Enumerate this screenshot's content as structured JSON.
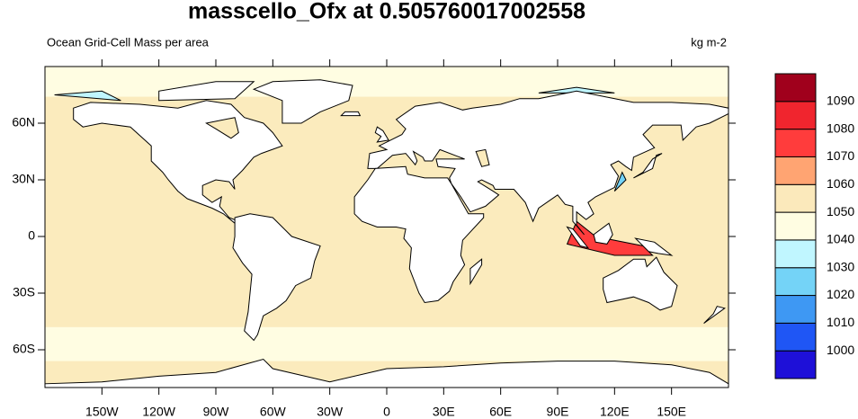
{
  "chart_data": {
    "type": "map",
    "title": "masscello_Ofx at 0.505760017002558",
    "subtitle_left": "Ocean Grid-Cell Mass per area",
    "subtitle_right": "kg m-2",
    "xlim": [
      -180,
      180
    ],
    "ylim": [
      -80,
      90
    ],
    "xticks": [
      {
        "value": -150,
        "label": "150W"
      },
      {
        "value": -120,
        "label": "120W"
      },
      {
        "value": -90,
        "label": "90W"
      },
      {
        "value": -60,
        "label": "60W"
      },
      {
        "value": -30,
        "label": "30W"
      },
      0,
      {
        "value": 30,
        "label": "30E"
      },
      {
        "value": 60,
        "label": "60E"
      },
      {
        "value": 90,
        "label": "90E"
      },
      {
        "value": 120,
        "label": "120E"
      },
      {
        "value": 150,
        "label": "150E"
      }
    ],
    "yticks": [
      {
        "value": -60,
        "label": "60S"
      },
      {
        "value": -30,
        "label": "30S"
      },
      0,
      {
        "value": 30,
        "label": "30N"
      },
      {
        "value": 60,
        "label": "60N"
      }
    ],
    "colorbar": {
      "levels": [
        1000,
        1010,
        1020,
        1030,
        1040,
        1050,
        1060,
        1070,
        1080,
        1090
      ],
      "colors": [
        "#1e10d8",
        "#1f56f5",
        "#3e98f3",
        "#74d3f7",
        "#c0f6ff",
        "#fffde2",
        "#fbe9bb",
        "#ffa472",
        "#ff3c3c",
        "#f0252e",
        "#a0001c"
      ]
    }
  }
}
